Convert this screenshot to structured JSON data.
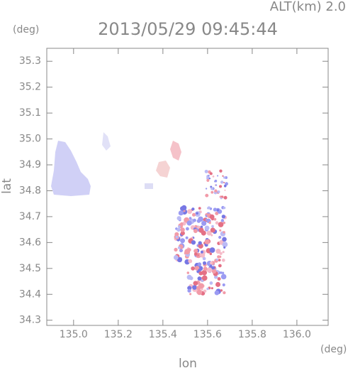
{
  "chart_data": {
    "type": "map",
    "title": "2013/05/29 09:45:44",
    "subtitle": "ALT(km) 2.0",
    "y_unit": "(deg)",
    "x_unit": "(deg)",
    "x_label": "lon",
    "y_label": "lat",
    "xlim": [
      134.88,
      136.14
    ],
    "xticks": [
      {
        "value": 135.0,
        "label": "135.0"
      },
      135.2,
      135.4,
      135.6,
      135.8,
      {
        "value": 136.0,
        "label": "136.0"
      }
    ],
    "ylim": [
      34.28,
      35.35
    ],
    "yticks": [
      34.3,
      34.4,
      34.5,
      34.6,
      34.7,
      34.8,
      34.9,
      {
        "value": 35.0,
        "label": "35.0"
      },
      35.1,
      35.2,
      35.3
    ]
  }
}
